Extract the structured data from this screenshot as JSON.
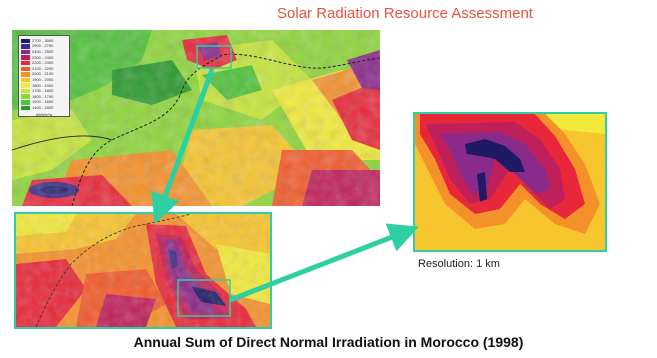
{
  "title": "Solar Radiation Resource Assessment",
  "caption": "Annual Sum of Direct Normal Irradiation in Morocco (1998)",
  "resolution_label": "Resolution: 1 km",
  "legend": {
    "entries": [
      {
        "color": "#1e1a66",
        "label": "2700 - 3000"
      },
      {
        "color": "#3a2a8c",
        "label": "2500 - 2700"
      },
      {
        "color": "#8a2a8a",
        "label": "2400 - 2500"
      },
      {
        "color": "#c0205a",
        "label": "2300 - 2400"
      },
      {
        "color": "#e8283a",
        "label": "2200 - 2300"
      },
      {
        "color": "#f25a2a",
        "label": "2100 - 2200"
      },
      {
        "color": "#f5912a",
        "label": "2000 - 2100"
      },
      {
        "color": "#f7c52e",
        "label": "1900 - 2000"
      },
      {
        "color": "#f2ea3a",
        "label": "1800 - 1900"
      },
      {
        "color": "#c8e63a",
        "label": "1700 - 1800"
      },
      {
        "color": "#8ed63a",
        "label": "1600 - 1700"
      },
      {
        "color": "#4fc23a",
        "label": "1500 - 1600"
      },
      {
        "color": "#2a9a2e",
        "label": "1400 - 1500"
      }
    ],
    "unit": "kWh/m²a"
  },
  "colors": {
    "accent": "#2ecfa2",
    "title": "#e8513c"
  }
}
